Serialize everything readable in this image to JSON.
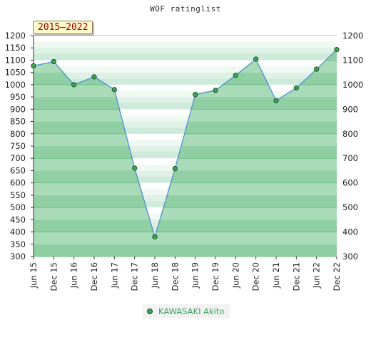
{
  "chart_data": {
    "type": "line",
    "title": "WOF ratinglist",
    "period_label": "2015—2022",
    "categories": [
      "Jun 15",
      "Dec 15",
      "Jun 16",
      "Dec 16",
      "Jun 17",
      "Dec 17",
      "Jun 18",
      "Dec 18",
      "Jun 19",
      "Dec 19",
      "Jun 20",
      "Dec 20",
      "Jun 21",
      "Dec 21",
      "Jun 22",
      "Dec 22"
    ],
    "series": [
      {
        "name": "KAWASAKI Akito",
        "values": [
          1077,
          1094,
          1000,
          1032,
          980,
          660,
          380,
          658,
          960,
          977,
          1038,
          1104,
          935,
          987,
          1063,
          1143
        ]
      }
    ],
    "y_ticks": [
      300,
      350,
      400,
      450,
      500,
      550,
      600,
      650,
      700,
      750,
      800,
      850,
      900,
      950,
      1000,
      1050,
      1100,
      1150,
      1200
    ],
    "y_ticks_right": [
      300,
      400,
      500,
      600,
      700,
      800,
      900,
      1000,
      1100,
      1200
    ],
    "ylim": [
      300,
      1200
    ],
    "xlabel": "",
    "ylabel": "",
    "colors": {
      "fill": "#7fc696",
      "line": "#4f8fd0",
      "marker": "#3aa35a",
      "legend_text": "#3aa35a",
      "badge_text": "#a00000"
    }
  }
}
